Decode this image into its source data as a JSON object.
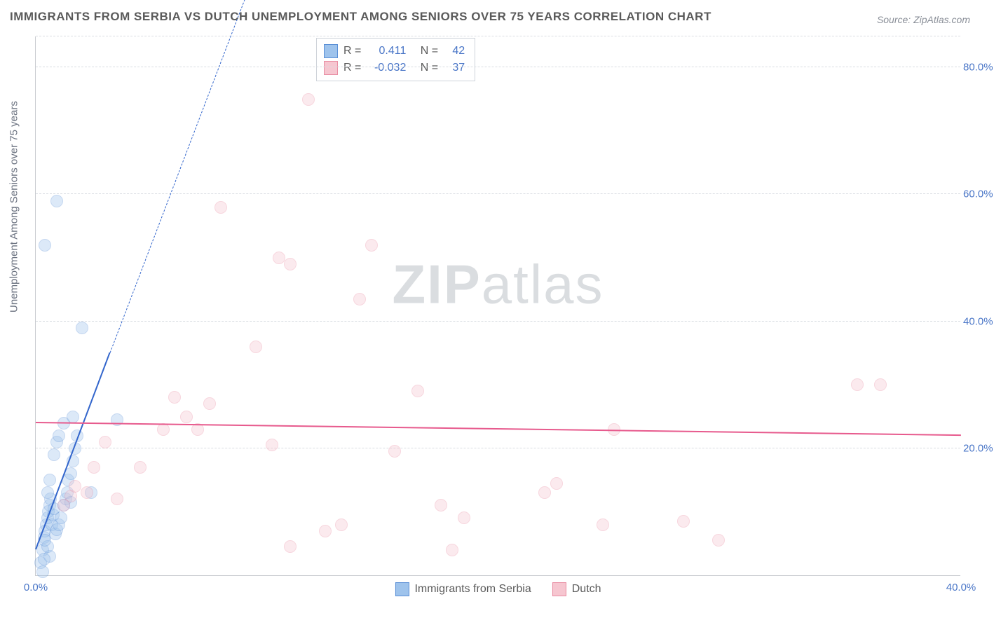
{
  "title": "IMMIGRANTS FROM SERBIA VS DUTCH UNEMPLOYMENT AMONG SENIORS OVER 75 YEARS CORRELATION CHART",
  "source": "Source: ZipAtlas.com",
  "ylabel": "Unemployment Among Seniors over 75 years",
  "watermark_bold": "ZIP",
  "watermark_light": "atlas",
  "chart": {
    "type": "scatter",
    "background_color": "#ffffff",
    "grid_color": "#d9dde2",
    "axis_color": "#c9ccd0",
    "tick_color": "#4a76c7",
    "label_color": "#6b7280",
    "title_color": "#5a5a5a",
    "title_fontsize": 17,
    "label_fontsize": 15,
    "tick_fontsize": 15,
    "xlim": [
      0,
      40
    ],
    "ylim": [
      0,
      85
    ],
    "xticks": [
      {
        "v": 0,
        "label": "0.0%"
      },
      {
        "v": 40,
        "label": "40.0%"
      }
    ],
    "yticks": [
      {
        "v": 20,
        "label": "20.0%"
      },
      {
        "v": 40,
        "label": "40.0%"
      },
      {
        "v": 60,
        "label": "60.0%"
      },
      {
        "v": 80,
        "label": "80.0%"
      }
    ],
    "marker_size": 18,
    "marker_opacity": 0.35,
    "series": [
      {
        "key": "serbia",
        "label": "Immigrants from Serbia",
        "fill": "#9ec3ec",
        "stroke": "#5a8fd6",
        "trend_color": "#3366cc",
        "trend": {
          "x1": 0,
          "y1": 4,
          "x2": 3.2,
          "y2": 35,
          "dash_to_x": 10,
          "dash_to_y": 100
        },
        "stats": {
          "R": "0.411",
          "N": "42"
        },
        "points": [
          [
            0.2,
            2
          ],
          [
            0.3,
            4
          ],
          [
            0.35,
            6
          ],
          [
            0.4,
            7
          ],
          [
            0.45,
            8
          ],
          [
            0.5,
            9
          ],
          [
            0.55,
            10
          ],
          [
            0.6,
            11
          ],
          [
            0.65,
            12
          ],
          [
            0.7,
            8
          ],
          [
            0.75,
            9.5
          ],
          [
            0.8,
            10.5
          ],
          [
            0.85,
            6.5
          ],
          [
            0.9,
            7.2
          ],
          [
            1.0,
            8
          ],
          [
            1.1,
            9
          ],
          [
            1.2,
            11
          ],
          [
            1.3,
            12
          ],
          [
            1.35,
            13
          ],
          [
            1.4,
            15
          ],
          [
            1.5,
            16
          ],
          [
            1.6,
            18
          ],
          [
            1.7,
            20
          ],
          [
            1.8,
            22
          ],
          [
            0.6,
            3
          ],
          [
            0.5,
            4.5
          ],
          [
            0.4,
            5.5
          ],
          [
            0.3,
            0.5
          ],
          [
            0.35,
            2.5
          ],
          [
            0.5,
            13
          ],
          [
            0.6,
            15
          ],
          [
            0.8,
            19
          ],
          [
            0.9,
            21
          ],
          [
            1.0,
            22
          ],
          [
            1.2,
            24
          ],
          [
            1.6,
            25
          ],
          [
            2.0,
            39
          ],
          [
            0.4,
            52
          ],
          [
            0.9,
            59
          ],
          [
            3.5,
            24.5
          ],
          [
            2.4,
            13
          ],
          [
            1.5,
            11.5
          ]
        ]
      },
      {
        "key": "dutch",
        "label": "Dutch",
        "fill": "#f6c6d0",
        "stroke": "#e98da3",
        "trend_color": "#e75a8d",
        "trend": {
          "x1": 0,
          "y1": 24,
          "x2": 40,
          "y2": 22
        },
        "stats": {
          "R": "-0.032",
          "N": "37"
        },
        "points": [
          [
            1.2,
            11
          ],
          [
            1.5,
            12.5
          ],
          [
            1.7,
            14
          ],
          [
            2.2,
            13
          ],
          [
            2.5,
            17
          ],
          [
            3.0,
            21
          ],
          [
            3.5,
            12
          ],
          [
            4.5,
            17
          ],
          [
            5.5,
            23
          ],
          [
            6.0,
            28
          ],
          [
            6.5,
            25
          ],
          [
            7.0,
            23
          ],
          [
            7.5,
            27
          ],
          [
            8.0,
            58
          ],
          [
            9.5,
            36
          ],
          [
            10.2,
            20.5
          ],
          [
            10.5,
            50
          ],
          [
            11.0,
            49
          ],
          [
            11.8,
            75
          ],
          [
            12.5,
            7
          ],
          [
            11.0,
            4.5
          ],
          [
            13.2,
            8
          ],
          [
            14.0,
            43.5
          ],
          [
            14.5,
            52
          ],
          [
            15.5,
            19.5
          ],
          [
            16.5,
            29
          ],
          [
            17.5,
            11
          ],
          [
            18.0,
            4
          ],
          [
            18.5,
            9
          ],
          [
            22.0,
            13
          ],
          [
            22.5,
            14.5
          ],
          [
            24.5,
            8
          ],
          [
            25.0,
            23
          ],
          [
            28.0,
            8.5
          ],
          [
            29.5,
            5.5
          ],
          [
            35.5,
            30
          ],
          [
            36.5,
            30
          ]
        ]
      }
    ]
  },
  "legend_stats": {
    "R_label": "R =",
    "N_label": "N ="
  }
}
